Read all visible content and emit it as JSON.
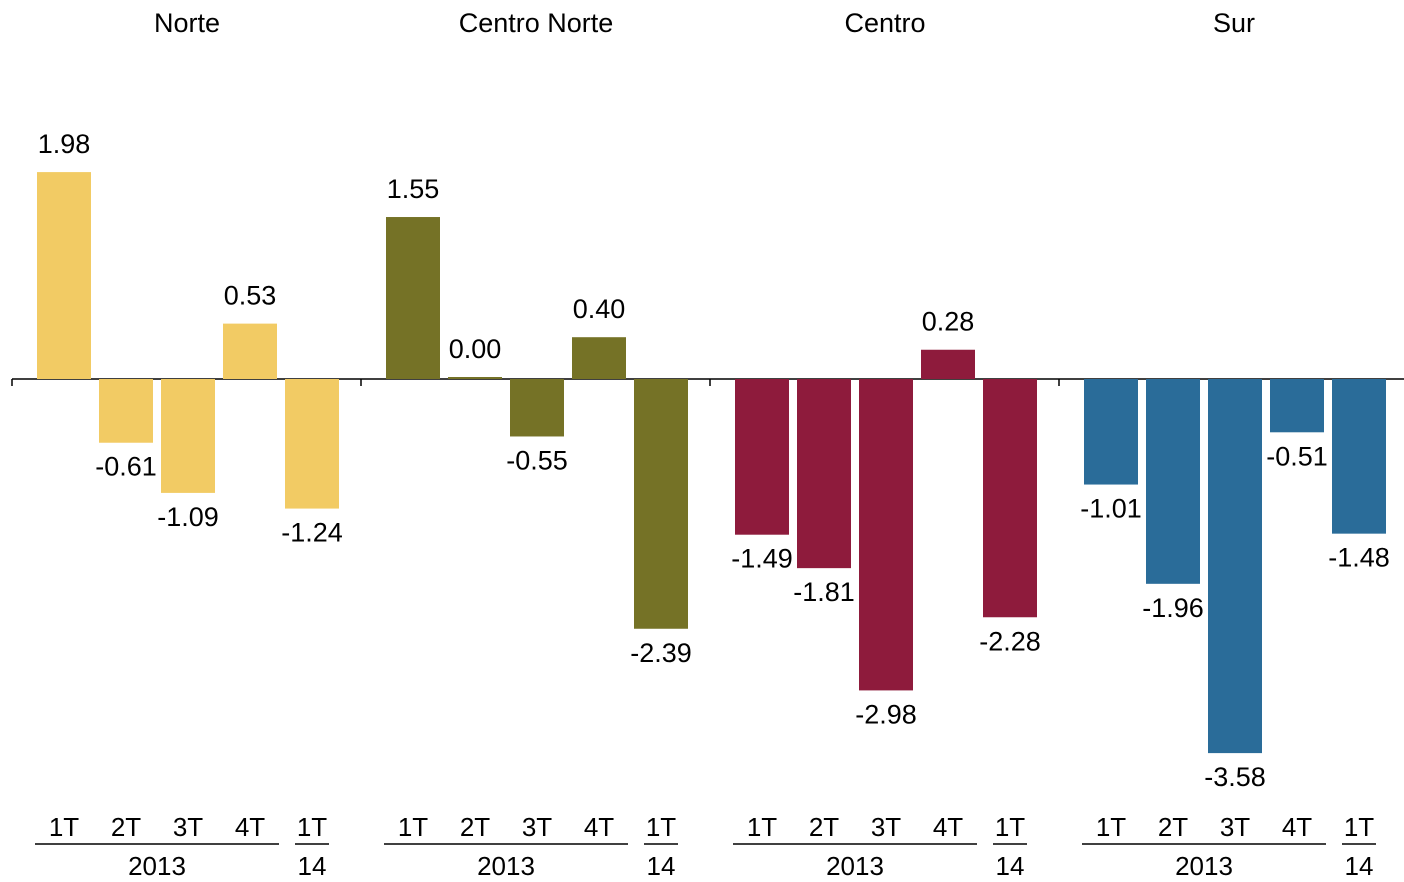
{
  "chart_data": {
    "type": "bar",
    "title": "",
    "xlabel": "",
    "ylabel": "",
    "ylim": [
      -3.9,
      2.3
    ],
    "grid": false,
    "legend": "none",
    "categories": [
      "1T",
      "2T",
      "3T",
      "4T",
      "1T"
    ],
    "groups": [
      {
        "label": "2013",
        "categories": [
          "1T",
          "2T",
          "3T",
          "4T"
        ]
      },
      {
        "label": "14",
        "categories": [
          "1T"
        ]
      }
    ],
    "series": [
      {
        "name": "Norte",
        "color": "#F2CB64",
        "values": [
          1.98,
          -0.61,
          -1.09,
          0.53,
          -1.24
        ]
      },
      {
        "name": "Centro Norte",
        "color": "#757226",
        "values": [
          1.55,
          0.0,
          -0.55,
          0.4,
          -2.39
        ]
      },
      {
        "name": "Centro",
        "color": "#8E1B3C",
        "values": [
          -1.49,
          -1.81,
          -2.98,
          0.28,
          -2.28
        ]
      },
      {
        "name": "Sur",
        "color": "#2A6C99",
        "values": [
          -1.01,
          -1.96,
          -3.58,
          -0.51,
          -1.48
        ]
      }
    ],
    "value_labels": [
      [
        "1.98",
        "-0.61",
        "-1.09",
        "0.53",
        "-1.24"
      ],
      [
        "1.55",
        "0.00",
        "-0.55",
        "0.40",
        "-2.39"
      ],
      [
        "-1.49",
        "-1.81",
        "-2.98",
        "0.28",
        "-2.28"
      ],
      [
        "-1.01",
        "-1.96",
        "-3.58",
        "-0.51",
        "-1.48"
      ]
    ]
  }
}
